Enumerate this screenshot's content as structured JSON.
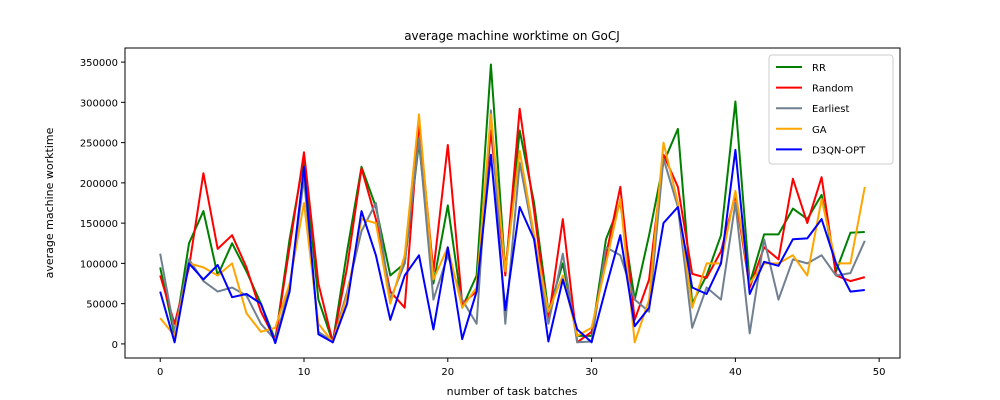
{
  "chart_data": {
    "type": "line",
    "title": "average machine worktime on GoCJ",
    "xlabel": "number of task batches",
    "ylabel": "average machine worktime",
    "xlim": [
      -2.45,
      51.45
    ],
    "ylim": [
      -17500,
      367500
    ],
    "xticks": [
      0,
      10,
      20,
      30,
      40,
      50
    ],
    "xtick_labels": [
      "0",
      "10",
      "20",
      "30",
      "40",
      "50"
    ],
    "yticks": [
      0,
      50000,
      100000,
      150000,
      200000,
      250000,
      300000,
      350000
    ],
    "ytick_labels": [
      "0",
      "50000",
      "100000",
      "150000",
      "200000",
      "250000",
      "300000",
      "350000"
    ],
    "grid": false,
    "legend_position": "upper right",
    "x": [
      0,
      1,
      2,
      3,
      4,
      5,
      6,
      7,
      8,
      9,
      10,
      11,
      12,
      13,
      14,
      15,
      16,
      17,
      18,
      19,
      20,
      21,
      22,
      23,
      24,
      25,
      26,
      27,
      28,
      29,
      30,
      31,
      32,
      33,
      34,
      35,
      36,
      37,
      38,
      39,
      40,
      41,
      42,
      43,
      44,
      45,
      46,
      47,
      48,
      49
    ],
    "series": [
      {
        "name": "RR",
        "color": "#008000",
        "values": [
          95000,
          10000,
          125000,
          165000,
          85000,
          125000,
          90000,
          50000,
          5000,
          130000,
          230000,
          55000,
          2000,
          115000,
          220000,
          170000,
          85000,
          100000,
          250000,
          75000,
          172000,
          45000,
          85000,
          347000,
          90000,
          265000,
          175000,
          40000,
          100000,
          10000,
          10000,
          130000,
          175000,
          55000,
          135000,
          225000,
          267000,
          50000,
          85000,
          135000,
          301000,
          75000,
          136000,
          136000,
          168000,
          155000,
          185000,
          90000,
          138000,
          139000
        ]
      },
      {
        "name": "Random",
        "color": "#ff0000",
        "values": [
          85000,
          25000,
          95000,
          212000,
          118000,
          135000,
          95000,
          40000,
          5000,
          120000,
          238000,
          75000,
          2000,
          95000,
          218000,
          155000,
          65000,
          45000,
          275000,
          90000,
          247000,
          50000,
          65000,
          265000,
          85000,
          292000,
          165000,
          30000,
          155000,
          2000,
          15000,
          110000,
          195000,
          30000,
          80000,
          235000,
          195000,
          87000,
          82000,
          115000,
          185000,
          70000,
          120000,
          105000,
          205000,
          150000,
          207000,
          85000,
          78000,
          83000
        ]
      },
      {
        "name": "Earliest",
        "color": "#708090",
        "values": [
          112000,
          15000,
          105000,
          78000,
          65000,
          70000,
          60000,
          25000,
          5000,
          70000,
          205000,
          15000,
          3000,
          65000,
          140000,
          175000,
          55000,
          100000,
          255000,
          55000,
          110000,
          55000,
          25000,
          290000,
          25000,
          225000,
          130000,
          25000,
          112000,
          2000,
          3000,
          120000,
          110000,
          55000,
          40000,
          230000,
          170000,
          20000,
          70000,
          55000,
          175000,
          13000,
          130000,
          55000,
          105000,
          100000,
          110000,
          85000,
          88000,
          128000
        ]
      },
      {
        "name": "GA",
        "color": "#ffa500",
        "values": [
          32000,
          10000,
          100000,
          95000,
          85000,
          100000,
          38000,
          15000,
          20000,
          75000,
          175000,
          25000,
          2000,
          60000,
          155000,
          150000,
          50000,
          110000,
          285000,
          80000,
          120000,
          45000,
          70000,
          285000,
          90000,
          240000,
          135000,
          40000,
          85000,
          10000,
          20000,
          100000,
          180000,
          2000,
          55000,
          250000,
          175000,
          45000,
          100000,
          100000,
          190000,
          75000,
          100000,
          100000,
          110000,
          85000,
          180000,
          100000,
          100000,
          195000
        ]
      },
      {
        "name": "D3QN-OPT",
        "color": "#0000ff",
        "values": [
          65000,
          2000,
          100000,
          80000,
          98000,
          58000,
          62000,
          50000,
          1000,
          65000,
          220000,
          12000,
          2000,
          50000,
          165000,
          110000,
          30000,
          85000,
          110000,
          18000,
          120000,
          6000,
          65000,
          235000,
          42000,
          170000,
          130000,
          3000,
          80000,
          18000,
          2000,
          70000,
          135000,
          22000,
          45000,
          150000,
          170000,
          70000,
          62000,
          100000,
          241000,
          62000,
          102000,
          97000,
          130000,
          131000,
          155000,
          100000,
          65000,
          67000
        ]
      }
    ]
  }
}
